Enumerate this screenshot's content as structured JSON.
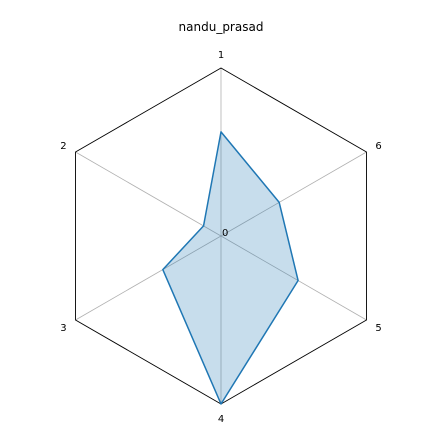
{
  "chart_data": {
    "type": "radar",
    "title": "nandu_prasad",
    "categories": [
      "1",
      "2",
      "3",
      "4",
      "5",
      "6"
    ],
    "series": [
      {
        "values": [
          0.62,
          0.12,
          0.4,
          1.0,
          0.53,
          0.4
        ]
      }
    ],
    "rlim": [
      0,
      1
    ],
    "center_label": "0",
    "grid": true,
    "colors": {
      "line": "#1f77b4",
      "fill": "#1f77b4",
      "fill_opacity": 0.25,
      "outline": "#000000",
      "spokes": "#b0b0b0"
    }
  }
}
